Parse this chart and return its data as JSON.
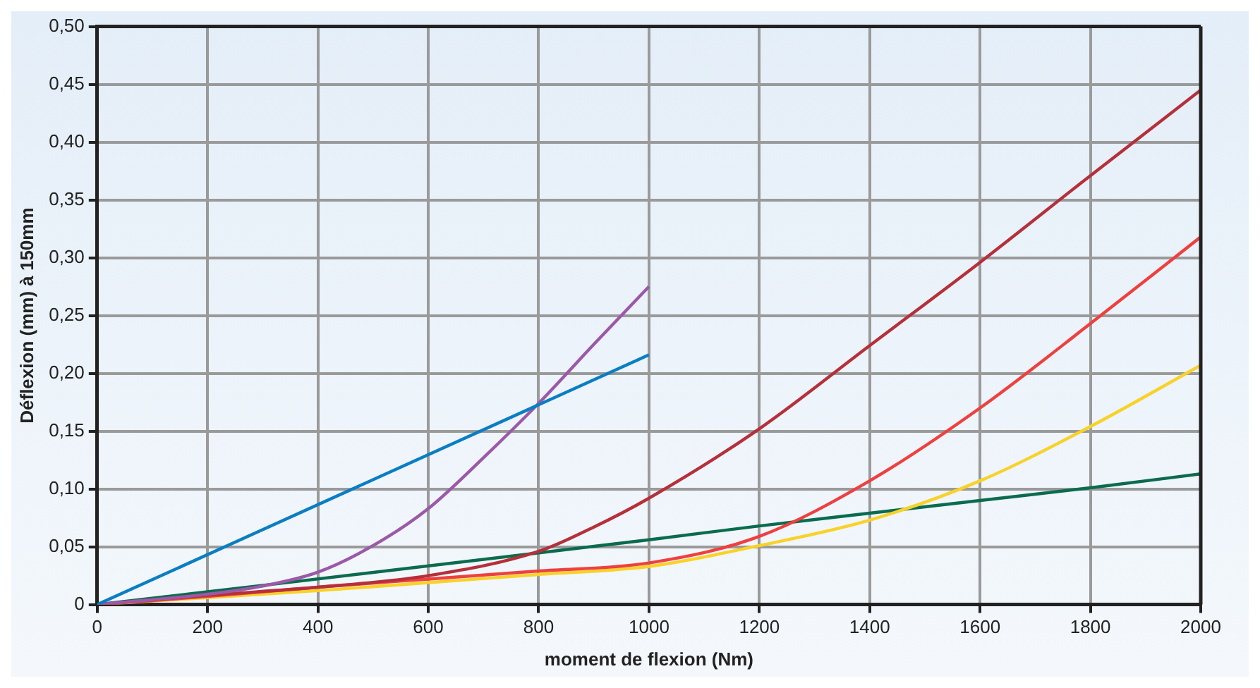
{
  "chart_data": {
    "type": "line",
    "xlabel": "moment de flexion (Nm)",
    "ylabel": "Déflexion (mm) à 150mm",
    "xlim": [
      0,
      2000
    ],
    "ylim": [
      0,
      0.5
    ],
    "xticks": [
      0,
      200,
      400,
      600,
      800,
      1000,
      1200,
      1400,
      1600,
      1800,
      2000
    ],
    "yticks": [
      {
        "value": 0,
        "label": "0"
      },
      {
        "value": 0.05,
        "label": "0,05"
      },
      {
        "value": 0.1,
        "label": "0,10"
      },
      {
        "value": 0.15,
        "label": "0,15"
      },
      {
        "value": 0.2,
        "label": "0,20"
      },
      {
        "value": 0.25,
        "label": "0,25"
      },
      {
        "value": 0.3,
        "label": "0,30"
      },
      {
        "value": 0.35,
        "label": "0,35"
      },
      {
        "value": 0.4,
        "label": "0,40"
      },
      {
        "value": 0.45,
        "label": "0,45"
      },
      {
        "value": 0.5,
        "label": "0,50"
      }
    ],
    "grid": true,
    "legend": false,
    "marker": "none",
    "line_style": "solid",
    "series": [
      {
        "color": "#0a7ec2",
        "x": [
          0,
          1000
        ],
        "values": [
          0,
          0.216
        ]
      },
      {
        "color": "#9b59a8",
        "x": [
          0,
          200,
          300,
          400,
          500,
          600,
          700,
          800,
          900,
          1000
        ],
        "values": [
          0,
          0.009,
          0.016,
          0.028,
          0.051,
          0.083,
          0.127,
          0.174,
          0.225,
          0.275
        ]
      },
      {
        "color": "#b5303a",
        "x": [
          0,
          200,
          400,
          600,
          800,
          900,
          1000,
          1200,
          1400,
          1600,
          1800,
          2000
        ],
        "values": [
          0,
          0.008,
          0.015,
          0.025,
          0.046,
          0.067,
          0.092,
          0.152,
          0.224,
          0.296,
          0.371,
          0.445
        ]
      },
      {
        "color": "#ef4040",
        "x": [
          0,
          200,
          400,
          600,
          800,
          1000,
          1200,
          1400,
          1600,
          1800,
          2000
        ],
        "values": [
          0,
          0.007,
          0.015,
          0.022,
          0.029,
          0.036,
          0.059,
          0.107,
          0.17,
          0.243,
          0.318
        ]
      },
      {
        "color": "#f8d22a",
        "x": [
          0,
          200,
          400,
          600,
          800,
          1000,
          1200,
          1400,
          1600,
          1800,
          2000
        ],
        "values": [
          0,
          0.006,
          0.012,
          0.019,
          0.026,
          0.033,
          0.051,
          0.073,
          0.107,
          0.154,
          0.207
        ]
      },
      {
        "color": "#0b6b4e",
        "x": [
          0,
          200,
          1000,
          1200,
          1400,
          1600,
          1800,
          2000
        ],
        "values": [
          0,
          0.011,
          0.056,
          0.068,
          0.079,
          0.09,
          0.101,
          0.113
        ]
      }
    ]
  }
}
